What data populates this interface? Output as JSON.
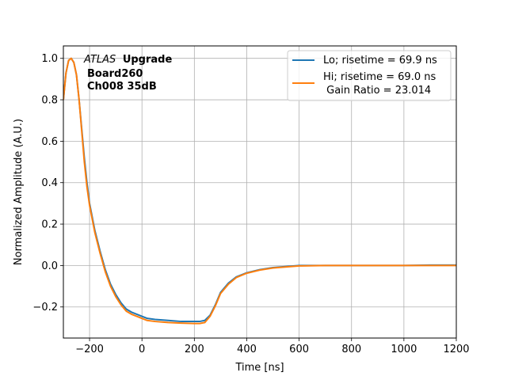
{
  "chart_data": {
    "type": "line",
    "xlabel": "Time [ns]",
    "ylabel": "Normalized Amplitude (A.U.)",
    "xlim": [
      -300,
      1200
    ],
    "ylim": [
      -0.35,
      1.06
    ],
    "xticks": [
      -200,
      0,
      200,
      400,
      600,
      800,
      1000,
      1200
    ],
    "xtick_labels": [
      "−200",
      "0",
      "200",
      "400",
      "600",
      "800",
      "1000",
      "1200"
    ],
    "yticks": [
      -0.2,
      0.0,
      0.2,
      0.4,
      0.6,
      0.8,
      1.0
    ],
    "ytick_labels": [
      "−0.2",
      "0.0",
      "0.2",
      "0.4",
      "0.6",
      "0.8",
      "1.0"
    ],
    "grid": true,
    "legend_position": "top-right",
    "annotation": {
      "atlas": "ATLAS",
      "upgrade": "Upgrade",
      "line2": "Board260",
      "line3": "Ch008 35dB"
    },
    "legend": {
      "lo": "Lo; risetime = 69.9 ns",
      "hi_line1": "Hi; risetime = 69.0 ns",
      "hi_line2": " Gain Ratio = 23.014"
    },
    "series": [
      {
        "name": "Lo; risetime = 69.9 ns",
        "color": "#1f77b4",
        "x": [
          -300,
          -290,
          -280,
          -270,
          -260,
          -250,
          -240,
          -230,
          -220,
          -210,
          -200,
          -180,
          -160,
          -140,
          -120,
          -100,
          -80,
          -60,
          -40,
          -20,
          0,
          20,
          50,
          100,
          150,
          200,
          220,
          240,
          260,
          280,
          300,
          330,
          360,
          400,
          450,
          500,
          600,
          700,
          800,
          900,
          1000,
          1100,
          1200
        ],
        "y": [
          0.8,
          0.93,
          0.99,
          1.0,
          0.98,
          0.92,
          0.8,
          0.66,
          0.52,
          0.4,
          0.3,
          0.17,
          0.07,
          -0.02,
          -0.09,
          -0.14,
          -0.18,
          -0.21,
          -0.225,
          -0.235,
          -0.245,
          -0.255,
          -0.26,
          -0.265,
          -0.27,
          -0.27,
          -0.27,
          -0.265,
          -0.24,
          -0.19,
          -0.13,
          -0.085,
          -0.055,
          -0.035,
          -0.02,
          -0.01,
          0.0,
          0.0,
          0.0,
          0.0,
          0.0,
          0.002,
          0.002
        ]
      },
      {
        "name": "Hi; risetime = 69.0 ns",
        "color": "#ff7f0e",
        "x": [
          -300,
          -290,
          -280,
          -270,
          -260,
          -250,
          -240,
          -230,
          -220,
          -210,
          -200,
          -180,
          -160,
          -140,
          -120,
          -100,
          -80,
          -60,
          -40,
          -20,
          0,
          20,
          50,
          100,
          150,
          200,
          220,
          240,
          260,
          280,
          300,
          330,
          360,
          400,
          450,
          500,
          600,
          700,
          800,
          900,
          1000,
          1100,
          1200
        ],
        "y": [
          0.8,
          0.93,
          0.99,
          1.0,
          0.98,
          0.92,
          0.8,
          0.65,
          0.5,
          0.38,
          0.29,
          0.16,
          0.06,
          -0.03,
          -0.1,
          -0.15,
          -0.19,
          -0.22,
          -0.235,
          -0.245,
          -0.255,
          -0.265,
          -0.27,
          -0.275,
          -0.278,
          -0.28,
          -0.28,
          -0.275,
          -0.245,
          -0.195,
          -0.135,
          -0.09,
          -0.058,
          -0.037,
          -0.022,
          -0.012,
          -0.002,
          0.0,
          0.0,
          0.0,
          0.0,
          0.0,
          0.0
        ]
      }
    ]
  }
}
